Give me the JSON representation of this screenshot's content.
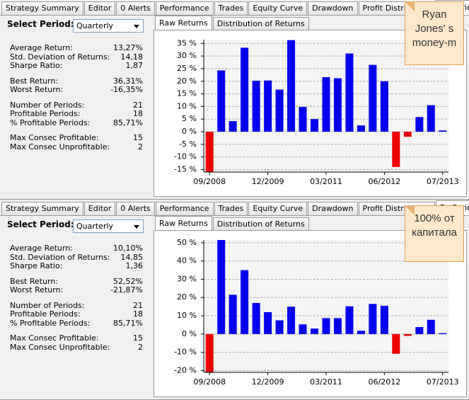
{
  "panels": [
    {
      "tabs": [
        "Strategy Summary",
        "Editor",
        "0 Alerts",
        "Performance",
        "Trades",
        "Equity Curve",
        "Drawdown",
        "Profit Distribution",
        "By Period"
      ],
      "active_tab": 8,
      "select_label": "Select Period:",
      "select_value": "Quarterly",
      "stats": [
        [
          {
            "label": "Average Return:",
            "value": "13,27%"
          },
          {
            "label": "Std. Deviation of Returns:",
            "value": "14,18"
          },
          {
            "label": "Sharpe Ratio:",
            "value": "1,87"
          }
        ],
        [
          {
            "label": "Best Return:",
            "value": "36,31%"
          },
          {
            "label": "Worst Return:",
            "value": "-16,35%"
          }
        ],
        [
          {
            "label": "Number of Periods:",
            "value": "21"
          },
          {
            "label": "Profitable Periods:",
            "value": "18"
          },
          {
            "label": "% Profitable Periods:",
            "value": "85,71%"
          }
        ],
        [
          {
            "label": "Max Consec Profitable:",
            "value": "15"
          },
          {
            "label": "Max Consec Unprofitable:",
            "value": "2"
          }
        ]
      ],
      "subtabs": [
        "Raw Returns",
        "Distribution of Returns"
      ],
      "note": [
        "Ryan",
        "Jones' s",
        "money-m"
      ],
      "chart": {
        "type": "bar",
        "categories": [
          "09/2008",
          null,
          null,
          null,
          null,
          "12/2009",
          null,
          null,
          null,
          null,
          "03/2011",
          null,
          null,
          null,
          null,
          "06/2012",
          null,
          null,
          null,
          null,
          "07/2013"
        ],
        "values": [
          -16.35,
          24.3,
          4.2,
          33.3,
          20.2,
          20.3,
          16.7,
          36.31,
          9.8,
          5,
          21.6,
          21.2,
          31,
          2.5,
          26.5,
          20,
          -14,
          -2,
          5.8,
          10.5,
          0.5
        ],
        "color_positive": "#0000ee",
        "color_negative": "#ee0000",
        "ylim": [
          -16,
          36.5
        ],
        "yticks": [
          {
            "value": -15,
            "label": "-15 %"
          },
          {
            "value": -10,
            "label": "-10 %"
          },
          {
            "value": -5,
            "label": "-5 %"
          },
          {
            "value": 0,
            "label": "0 %"
          },
          {
            "value": 5,
            "label": "5 %"
          },
          {
            "value": 10,
            "label": "10 %"
          },
          {
            "value": 15,
            "label": "15 %"
          },
          {
            "value": 20,
            "label": "20 %"
          },
          {
            "value": 25,
            "label": "25 %"
          },
          {
            "value": 30,
            "label": "30 %"
          },
          {
            "value": 35,
            "label": "35 %"
          }
        ],
        "grid": true
      }
    },
    {
      "tabs": [
        "Strategy Summary",
        "Editor",
        "0 Alerts",
        "Performance",
        "Trades",
        "Equity Curve",
        "Drawdown",
        "Profit Distribution",
        "By Period"
      ],
      "active_tab": 8,
      "select_label": "Select Period:",
      "select_value": "Quarterly",
      "stats": [
        [
          {
            "label": "Average Return:",
            "value": "10,10%"
          },
          {
            "label": "Std. Deviation of Returns:",
            "value": "14,85"
          },
          {
            "label": "Sharpe Ratio:",
            "value": "1,36"
          }
        ],
        [
          {
            "label": "Best Return:",
            "value": "52,52%"
          },
          {
            "label": "Worst Return:",
            "value": "-21,87%"
          }
        ],
        [
          {
            "label": "Number of Periods:",
            "value": "21"
          },
          {
            "label": "Profitable Periods:",
            "value": "18"
          },
          {
            "label": "% Profitable Periods:",
            "value": "85,71%"
          }
        ],
        [
          {
            "label": "Max Consec Profitable:",
            "value": "15"
          },
          {
            "label": "Max Consec Unprofitable:",
            "value": "2"
          }
        ]
      ],
      "subtabs": [
        "Raw Returns",
        "Distribution of Returns"
      ],
      "note": [
        "100% от",
        "капитала"
      ],
      "chart": {
        "type": "bar",
        "categories": [
          "09/2008",
          null,
          null,
          null,
          null,
          "12/2009",
          null,
          null,
          null,
          null,
          "03/2011",
          null,
          null,
          null,
          null,
          "06/2012",
          null,
          null,
          null,
          null,
          "07/2013"
        ],
        "values": [
          -21.87,
          52.52,
          21.5,
          35,
          17,
          12,
          7.5,
          15,
          5.3,
          3,
          8.7,
          8.7,
          15.2,
          1.8,
          16.5,
          15.5,
          -10.8,
          -1,
          3.8,
          7.8,
          0.5
        ],
        "color_positive": "#0000ee",
        "color_negative": "#ee0000",
        "ylim": [
          -21,
          51.5
        ],
        "yticks": [
          {
            "value": -20,
            "label": "-20 %"
          },
          {
            "value": -10,
            "label": "-10 %"
          },
          {
            "value": 0,
            "label": "0 %"
          },
          {
            "value": 10,
            "label": "10 %"
          },
          {
            "value": 20,
            "label": "20 %"
          },
          {
            "value": 30,
            "label": "30 %"
          },
          {
            "value": 40,
            "label": "40 %"
          },
          {
            "value": 50,
            "label": "50 %"
          }
        ],
        "grid": true
      }
    }
  ]
}
